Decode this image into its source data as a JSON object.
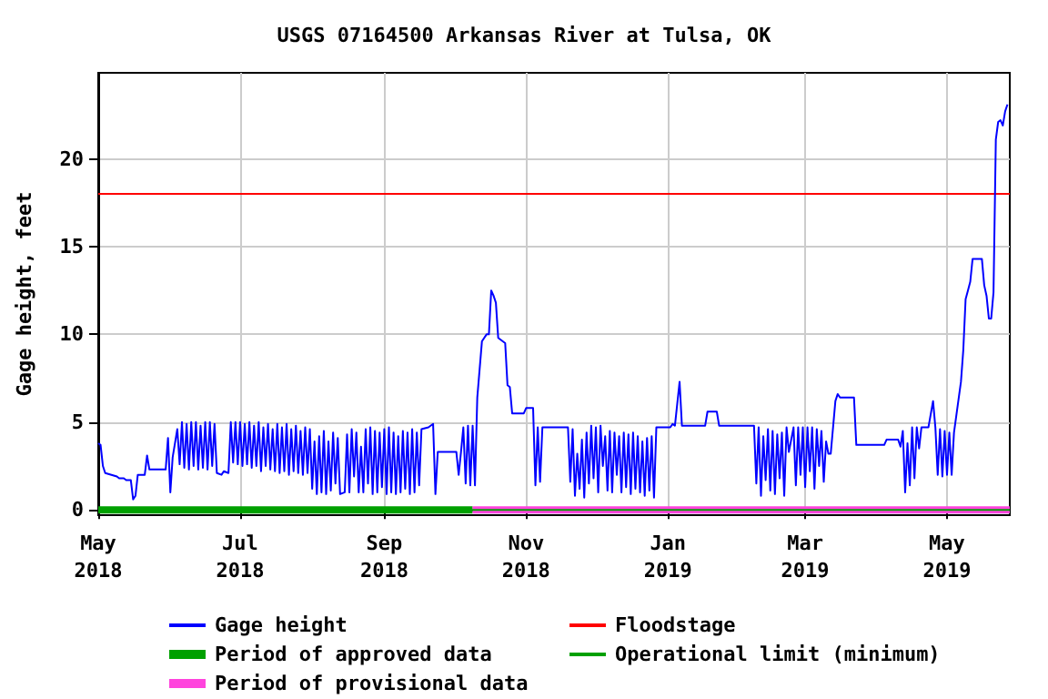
{
  "chart_data": {
    "type": "line",
    "title": "USGS 07164500 Arkansas River at Tulsa, OK",
    "ylabel": "Gage height, feet",
    "x": [
      "2018-05-01",
      "2018-05-02",
      "2018-05-03",
      "2018-05-04",
      "2018-05-09",
      "2018-05-10",
      "2018-05-12",
      "2018-05-13",
      "2018-05-15",
      "2018-05-16",
      "2018-05-17",
      "2018-05-18",
      "2018-05-21",
      "2018-05-22",
      "2018-05-23",
      "2018-05-30",
      "2018-05-31",
      "2018-06-01",
      "2018-06-02",
      "2018-06-04",
      "2018-06-05",
      "2018-06-06",
      "2018-06-07",
      "2018-06-08",
      "2018-06-09",
      "2018-06-10",
      "2018-06-11",
      "2018-06-12",
      "2018-06-13",
      "2018-06-14",
      "2018-06-15",
      "2018-06-16",
      "2018-06-17",
      "2018-06-18",
      "2018-06-19",
      "2018-06-20",
      "2018-06-21",
      "2018-06-23",
      "2018-06-24",
      "2018-06-26",
      "2018-06-27",
      "2018-06-28",
      "2018-06-29",
      "2018-06-30",
      "2018-07-01",
      "2018-07-02",
      "2018-07-03",
      "2018-07-04",
      "2018-07-05",
      "2018-07-06",
      "2018-07-07",
      "2018-07-08",
      "2018-07-09",
      "2018-07-10",
      "2018-07-11",
      "2018-07-12",
      "2018-07-13",
      "2018-07-14",
      "2018-07-15",
      "2018-07-16",
      "2018-07-17",
      "2018-07-18",
      "2018-07-19",
      "2018-07-20",
      "2018-07-21",
      "2018-07-22",
      "2018-07-23",
      "2018-07-24",
      "2018-07-25",
      "2018-07-26",
      "2018-07-27",
      "2018-07-28",
      "2018-07-29",
      "2018-07-30",
      "2018-07-31",
      "2018-08-01",
      "2018-08-02",
      "2018-08-03",
      "2018-08-04",
      "2018-08-05",
      "2018-08-06",
      "2018-08-07",
      "2018-08-08",
      "2018-08-09",
      "2018-08-10",
      "2018-08-11",
      "2018-08-12",
      "2018-08-13",
      "2018-08-15",
      "2018-08-16",
      "2018-08-17",
      "2018-08-18",
      "2018-08-19",
      "2018-08-20",
      "2018-08-21",
      "2018-08-22",
      "2018-08-23",
      "2018-08-24",
      "2018-08-25",
      "2018-08-26",
      "2018-08-27",
      "2018-08-28",
      "2018-08-29",
      "2018-08-30",
      "2018-08-31",
      "2018-09-01",
      "2018-09-02",
      "2018-09-03",
      "2018-09-04",
      "2018-09-05",
      "2018-09-06",
      "2018-09-07",
      "2018-09-08",
      "2018-09-09",
      "2018-09-10",
      "2018-09-11",
      "2018-09-12",
      "2018-09-13",
      "2018-09-14",
      "2018-09-15",
      "2018-09-16",
      "2018-09-17",
      "2018-09-20",
      "2018-09-22",
      "2018-09-23",
      "2018-09-24",
      "2018-10-02",
      "2018-10-03",
      "2018-10-04",
      "2018-10-05",
      "2018-10-06",
      "2018-10-07",
      "2018-10-08",
      "2018-10-09",
      "2018-10-10",
      "2018-10-11",
      "2018-10-13",
      "2018-10-15",
      "2018-10-16",
      "2018-10-17",
      "2018-10-18",
      "2018-10-19",
      "2018-10-20",
      "2018-10-23",
      "2018-10-24",
      "2018-10-25",
      "2018-10-26",
      "2018-10-31",
      "2018-11-01",
      "2018-11-04",
      "2018-11-05",
      "2018-11-06",
      "2018-11-07",
      "2018-11-08",
      "2018-11-19",
      "2018-11-20",
      "2018-11-21",
      "2018-11-22",
      "2018-11-23",
      "2018-11-24",
      "2018-11-25",
      "2018-11-26",
      "2018-11-27",
      "2018-11-28",
      "2018-11-29",
      "2018-11-30",
      "2018-12-01",
      "2018-12-02",
      "2018-12-03",
      "2018-12-04",
      "2018-12-05",
      "2018-12-06",
      "2018-12-07",
      "2018-12-08",
      "2018-12-09",
      "2018-12-10",
      "2018-12-11",
      "2018-12-12",
      "2018-12-13",
      "2018-12-14",
      "2018-12-15",
      "2018-12-16",
      "2018-12-17",
      "2018-12-18",
      "2018-12-19",
      "2018-12-20",
      "2018-12-21",
      "2018-12-22",
      "2018-12-23",
      "2018-12-24",
      "2018-12-25",
      "2018-12-26",
      "2018-12-27",
      "2019-01-02",
      "2019-01-03",
      "2019-01-04",
      "2019-01-06",
      "2019-01-07",
      "2019-01-17",
      "2019-01-18",
      "2019-01-22",
      "2019-01-23",
      "2019-02-07",
      "2019-02-08",
      "2019-02-09",
      "2019-02-10",
      "2019-02-11",
      "2019-02-12",
      "2019-02-13",
      "2019-02-14",
      "2019-02-15",
      "2019-02-16",
      "2019-02-17",
      "2019-02-18",
      "2019-02-19",
      "2019-02-20",
      "2019-02-21",
      "2019-02-22",
      "2019-02-24",
      "2019-02-25",
      "2019-02-26",
      "2019-02-27",
      "2019-02-28",
      "2019-03-01",
      "2019-03-02",
      "2019-03-03",
      "2019-03-04",
      "2019-03-05",
      "2019-03-06",
      "2019-03-07",
      "2019-03-08",
      "2019-03-09",
      "2019-03-10",
      "2019-03-11",
      "2019-03-12",
      "2019-03-14",
      "2019-03-15",
      "2019-03-16",
      "2019-03-22",
      "2019-03-23",
      "2019-04-04",
      "2019-04-05",
      "2019-04-10",
      "2019-04-11",
      "2019-04-12",
      "2019-04-13",
      "2019-04-14",
      "2019-04-15",
      "2019-04-16",
      "2019-04-17",
      "2019-04-18",
      "2019-04-19",
      "2019-04-20",
      "2019-04-23",
      "2019-04-25",
      "2019-04-26",
      "2019-04-27",
      "2019-04-28",
      "2019-04-29",
      "2019-04-30",
      "2019-05-01",
      "2019-05-02",
      "2019-05-03",
      "2019-05-04",
      "2019-05-07",
      "2019-05-08",
      "2019-05-09",
      "2019-05-10",
      "2019-05-11",
      "2019-05-12",
      "2019-05-16",
      "2019-05-17",
      "2019-05-18",
      "2019-05-19",
      "2019-05-20",
      "2019-05-21",
      "2019-05-22",
      "2019-05-23",
      "2019-05-24",
      "2019-05-25",
      "2019-05-26",
      "2019-05-27"
    ],
    "series": [
      {
        "name": "Gage height",
        "color": "#0000ff",
        "values": [
          3.8,
          3.7,
          2.5,
          2.1,
          1.9,
          1.8,
          1.8,
          1.7,
          1.7,
          0.6,
          0.8,
          2.0,
          2.0,
          3.1,
          2.3,
          2.3,
          4.1,
          1.0,
          3.0,
          4.6,
          2.6,
          5.0,
          2.4,
          4.9,
          2.3,
          5.0,
          2.5,
          5.0,
          2.3,
          4.8,
          2.4,
          5.0,
          2.3,
          5.0,
          2.5,
          4.9,
          2.1,
          2.0,
          2.2,
          2.1,
          5.0,
          2.7,
          5.0,
          2.6,
          5.0,
          2.5,
          4.9,
          2.6,
          5.0,
          2.4,
          4.8,
          2.5,
          5.0,
          2.2,
          4.7,
          2.5,
          4.9,
          2.3,
          4.6,
          2.2,
          4.9,
          2.1,
          4.7,
          2.2,
          4.9,
          2.0,
          4.6,
          2.2,
          4.8,
          2.1,
          4.5,
          2.0,
          4.7,
          2.1,
          4.6,
          1.2,
          3.9,
          0.9,
          4.2,
          1.0,
          4.5,
          0.9,
          3.9,
          1.1,
          4.4,
          1.5,
          4.1,
          0.9,
          1.0,
          4.3,
          1.0,
          4.6,
          1.9,
          4.4,
          1.0,
          3.6,
          1.0,
          4.6,
          1.5,
          4.7,
          0.9,
          4.5,
          1.0,
          4.4,
          1.3,
          4.6,
          0.9,
          4.7,
          1.0,
          4.4,
          0.9,
          4.2,
          1.0,
          4.5,
          1.2,
          4.4,
          0.9,
          4.6,
          1.0,
          4.4,
          1.4,
          4.6,
          4.7,
          4.9,
          0.9,
          3.3,
          3.3,
          2.0,
          3.3,
          4.7,
          1.5,
          4.8,
          1.4,
          4.8,
          1.4,
          6.4,
          9.6,
          10.0,
          10.0,
          12.5,
          12.2,
          11.8,
          9.8,
          9.5,
          7.1,
          7.0,
          5.5,
          5.5,
          5.8,
          5.8,
          1.4,
          4.7,
          1.6,
          4.7,
          4.7,
          1.6,
          4.6,
          0.8,
          3.2,
          1.2,
          4.0,
          0.7,
          4.4,
          1.5,
          4.8,
          1.8,
          4.7,
          1.0,
          4.8,
          2.5,
          4.2,
          1.1,
          4.5,
          1.0,
          4.4,
          2.0,
          4.2,
          1.0,
          4.4,
          1.3,
          4.3,
          0.9,
          4.4,
          1.2,
          4.2,
          1.0,
          3.9,
          0.8,
          4.1,
          1.1,
          4.2,
          0.7,
          4.7,
          4.7,
          4.9,
          4.8,
          7.3,
          4.8,
          4.8,
          5.6,
          5.6,
          4.8,
          4.8,
          1.5,
          4.7,
          0.8,
          4.2,
          1.7,
          4.6,
          1.1,
          4.5,
          0.9,
          4.3,
          1.8,
          4.4,
          0.8,
          4.7,
          3.3,
          4.7,
          1.4,
          4.7,
          2.0,
          4.7,
          1.3,
          4.7,
          2.2,
          4.7,
          1.2,
          4.6,
          2.5,
          4.5,
          1.6,
          3.9,
          3.2,
          3.2,
          6.2,
          6.6,
          6.4,
          6.4,
          3.7,
          3.7,
          4.0,
          4.0,
          3.6,
          4.5,
          1.0,
          3.8,
          1.4,
          4.7,
          1.8,
          4.7,
          3.5,
          4.7,
          4.7,
          6.2,
          4.7,
          2.0,
          4.6,
          1.9,
          4.5,
          2.0,
          4.4,
          2.0,
          4.4,
          7.3,
          9.1,
          12.0,
          12.5,
          13.0,
          14.3,
          14.3,
          12.8,
          12.2,
          10.9,
          10.9,
          12.4,
          21.1,
          22.1,
          22.2,
          21.9,
          22.7,
          23.1
        ]
      },
      {
        "name": "Period of approved data",
        "color": "#00a000",
        "x": [
          "2018-05-01",
          "2018-10-09"
        ],
        "values": [
          0,
          0
        ]
      },
      {
        "name": "Period of provisional data",
        "color": "#ff44dd",
        "x": [
          "2018-10-09",
          "2019-05-28"
        ],
        "values": [
          0,
          0
        ]
      }
    ],
    "xlim": [
      "2018-05-01",
      "2019-05-28"
    ],
    "xticks": [
      {
        "value": "2018-05-01",
        "label": "May 2018"
      },
      {
        "value": "2018-07-01",
        "label": "Jul 2018"
      },
      {
        "value": "2018-09-01",
        "label": "Sep 2018"
      },
      {
        "value": "2018-11-01",
        "label": "Nov 2018"
      },
      {
        "value": "2019-01-01",
        "label": "Jan 2019"
      },
      {
        "value": "2019-03-01",
        "label": "Mar 2019"
      },
      {
        "value": "2019-05-01",
        "label": "May 2019"
      }
    ],
    "ylim": [
      -0.3,
      24.9
    ],
    "yticks": [
      0,
      5,
      10,
      15,
      20
    ],
    "ref_lines": [
      {
        "axis": "y",
        "value": 18,
        "label": "Floodstage",
        "color": "#ff0000"
      },
      {
        "axis": "y",
        "value": 0,
        "label": "Operational limit (minimum)",
        "color": "#00a000"
      }
    ],
    "grid": true,
    "legend": "bottom",
    "marker": "none",
    "line_style": "solid"
  }
}
